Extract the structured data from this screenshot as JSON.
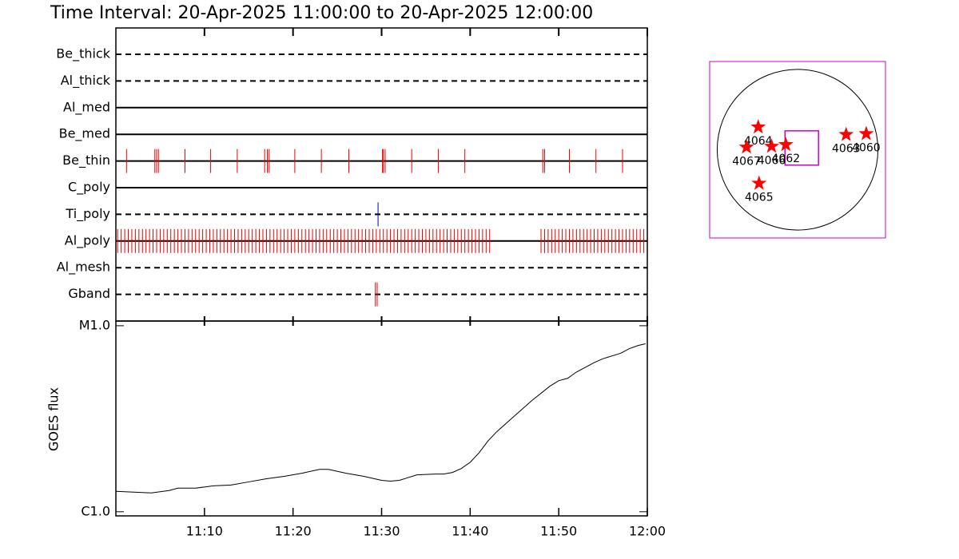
{
  "chart_data": [
    {
      "type": "timeline",
      "title": "Time Interval: 20-Apr-2025 11:00:00 to 20-Apr-2025 12:00:00",
      "categories": [
        "Be_thick",
        "Al_thick",
        "Al_med",
        "Be_med",
        "Be_thin",
        "C_poly",
        "Ti_poly",
        "Al_poly",
        "Al_mesh",
        "Gband"
      ],
      "line_styles": [
        "dashed",
        "dashed",
        "solid",
        "solid",
        "solid",
        "solid",
        "dashed",
        "solid",
        "dashed",
        "dashed"
      ],
      "colors": [
        "#ee0000",
        "#ee0000",
        "#ee0000",
        "#ee0000",
        "#ee0000",
        "#ee0000",
        "#0000aa",
        "#ee0000",
        "#ee0000",
        "#ee0000"
      ],
      "xlim": [
        0,
        60
      ],
      "events": [
        [],
        [],
        [],
        [],
        [
          1.2,
          4.4,
          4.6,
          4.8,
          7.8,
          10.7,
          13.7,
          16.8,
          17.1,
          17.3,
          20.2,
          23.2,
          26.3,
          30.1,
          30.2,
          30.4,
          33.4,
          36.4,
          39.4,
          48.2,
          48.4,
          51.2,
          54.2,
          57.2
        ],
        [],
        [
          29.6
        ],
        [
          0.2,
          0.6,
          1.0,
          1.4,
          1.8,
          2.2,
          2.6,
          3.0,
          3.4,
          3.8,
          4.2,
          4.6,
          5.0,
          5.4,
          5.8,
          6.2,
          6.6,
          7.0,
          7.4,
          7.8,
          8.2,
          8.6,
          9.0,
          9.4,
          9.8,
          10.2,
          10.6,
          11.0,
          11.4,
          11.8,
          12.2,
          12.6,
          13.0,
          13.4,
          13.8,
          14.2,
          14.6,
          15.0,
          15.4,
          15.8,
          16.2,
          16.6,
          17.0,
          17.4,
          17.8,
          18.2,
          18.6,
          19.0,
          19.4,
          19.8,
          20.2,
          20.6,
          21.0,
          21.4,
          21.8,
          22.2,
          22.6,
          23.0,
          23.4,
          23.8,
          24.2,
          24.6,
          25.0,
          25.4,
          25.8,
          26.2,
          26.6,
          27.0,
          27.4,
          27.8,
          28.2,
          28.6,
          29.0,
          29.4,
          29.8,
          30.2,
          30.6,
          31.0,
          31.4,
          31.8,
          32.2,
          32.6,
          33.0,
          33.4,
          33.8,
          34.2,
          34.6,
          35.0,
          35.4,
          35.8,
          36.2,
          36.6,
          37.0,
          37.4,
          37.8,
          38.2,
          38.6,
          39.0,
          39.4,
          39.8,
          40.2,
          40.6,
          41.0,
          41.4,
          41.8,
          42.2,
          48.0,
          48.4,
          48.8,
          49.2,
          49.6,
          50.0,
          50.4,
          50.8,
          51.2,
          51.6,
          52.0,
          52.4,
          52.8,
          53.2,
          53.6,
          54.0,
          54.4,
          54.8,
          55.2,
          55.6,
          56.0,
          56.4,
          56.8,
          57.2,
          57.6,
          58.0,
          58.4,
          58.8,
          59.2,
          59.6
        ],
        [],
        [
          29.3,
          29.5
        ]
      ]
    },
    {
      "type": "line",
      "y_label": "GOES flux",
      "log_y": true,
      "color": "#000000",
      "x": [
        0,
        2,
        4,
        6,
        7,
        9,
        11,
        13,
        15,
        17,
        19,
        21,
        23,
        24,
        26,
        28,
        30,
        31,
        32,
        34,
        36,
        37,
        38,
        39,
        40,
        41,
        42,
        43,
        45,
        47,
        49,
        50,
        51,
        52,
        54,
        55,
        57,
        58,
        59,
        59.8
      ],
      "values": [
        1.287e-06,
        1.275e-06,
        1.263e-06,
        1.3e-06,
        1.339e-06,
        1.339e-06,
        1.378e-06,
        1.392e-06,
        1.447e-06,
        1.504e-06,
        1.549e-06,
        1.61e-06,
        1.69e-06,
        1.69e-06,
        1.61e-06,
        1.549e-06,
        1.475e-06,
        1.461e-06,
        1.475e-06,
        1.579e-06,
        1.594e-06,
        1.594e-06,
        1.626e-06,
        1.707e-06,
        1.845e-06,
        2.073e-06,
        2.398e-06,
        2.694e-06,
        3.272e-06,
        3.974e-06,
        4.733e-06,
        5.066e-06,
        5.216e-06,
        5.637e-06,
        6.336e-06,
        6.65e-06,
        7.116e-06,
        7.544e-06,
        7.843e-06,
        7.998e-06
      ],
      "xlim": [
        0,
        60
      ],
      "xticks": [
        {
          "value": 10,
          "label": "11:10"
        },
        {
          "value": 20,
          "label": "11:20"
        },
        {
          "value": 30,
          "label": "11:30"
        },
        {
          "value": 40,
          "label": "11:40"
        },
        {
          "value": 50,
          "label": "11:50"
        },
        {
          "value": 60,
          "label": "12:00"
        }
      ],
      "ylim": [
        9.5e-07,
        1.06e-05
      ],
      "yticks": [
        {
          "value": 1e-05,
          "label": "M1.0"
        },
        {
          "value": 1e-06,
          "label": "C1.0"
        }
      ]
    },
    {
      "type": "scatter",
      "labels": [
        "4064",
        "4067",
        "4066",
        "4062",
        "4063",
        "4060",
        "4065"
      ],
      "x": [
        -470,
        -610,
        -310,
        -140,
        580,
        820,
        -460
      ],
      "y": [
        270,
        30,
        40,
        60,
        180,
        190,
        -400
      ],
      "xlim": [
        -1050,
        1050
      ],
      "ylim": [
        -1050,
        1050
      ],
      "disk_radius": 960,
      "fov": {
        "x": 50,
        "y": 20,
        "width": 400,
        "height": 410
      },
      "color": "#ff0000",
      "fov_color": "#cc00cc"
    }
  ]
}
